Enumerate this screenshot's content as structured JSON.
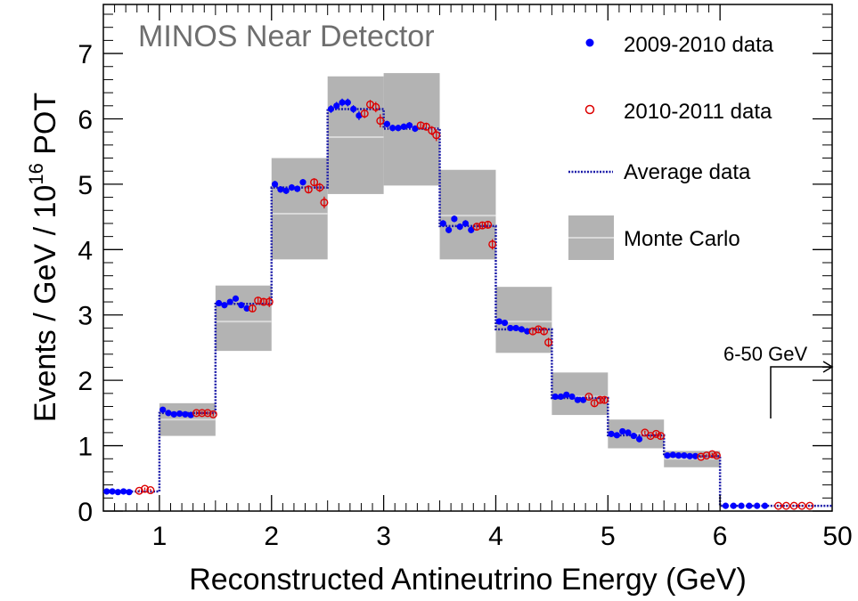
{
  "chart_data": {
    "type": "line",
    "title": "MINOS Near Detector",
    "xlabel": "Reconstructed Antineutrino Energy (GeV)",
    "ylabel_main": "Events / GeV / 10",
    "ylabel_exp": "16",
    "ylabel_tail": " POT",
    "xlim": [
      0.5,
      7.0
    ],
    "ylim": [
      0,
      7.75
    ],
    "x_ticks": [
      1,
      2,
      3,
      4,
      5,
      6
    ],
    "x_tick_labels": [
      "1",
      "2",
      "3",
      "4",
      "5",
      "6"
    ],
    "overflow_tick_label": "50",
    "y_ticks": [
      0,
      1,
      2,
      3,
      4,
      5,
      6,
      7
    ],
    "y_tick_labels": [
      "0",
      "1",
      "2",
      "3",
      "4",
      "5",
      "6",
      "7"
    ],
    "annotation": "6-50 GeV",
    "legend": [
      {
        "label": "2009-2010 data",
        "marker": "filled-circle",
        "color": "#0000ff"
      },
      {
        "label": "2010-2011 data",
        "marker": "open-circle",
        "color": "#dd0000"
      },
      {
        "label": "Average data",
        "marker": "dotted-line",
        "color": "#1a1aa8"
      },
      {
        "label": "Monte Carlo",
        "marker": "gray-box",
        "color": "#b3b3b3"
      }
    ],
    "monte_carlo": [
      {
        "x0": 1.0,
        "x1": 1.5,
        "center": 1.4,
        "low": 1.15,
        "high": 1.65
      },
      {
        "x0": 1.5,
        "x1": 2.0,
        "center": 2.9,
        "low": 2.45,
        "high": 3.45
      },
      {
        "x0": 2.0,
        "x1": 2.5,
        "center": 4.55,
        "low": 3.85,
        "high": 5.4
      },
      {
        "x0": 2.5,
        "x1": 3.0,
        "center": 5.72,
        "low": 4.85,
        "high": 6.65
      },
      {
        "x0": 3.0,
        "x1": 3.5,
        "center": 5.85,
        "low": 4.98,
        "high": 6.7
      },
      {
        "x0": 3.5,
        "x1": 4.0,
        "center": 4.52,
        "low": 3.85,
        "high": 5.22
      },
      {
        "x0": 4.0,
        "x1": 4.5,
        "center": 2.9,
        "low": 2.42,
        "high": 3.43
      },
      {
        "x0": 4.5,
        "x1": 5.0,
        "center": 1.75,
        "low": 1.47,
        "high": 2.12
      },
      {
        "x0": 5.0,
        "x1": 5.5,
        "center": 1.18,
        "low": 0.96,
        "high": 1.4
      },
      {
        "x0": 5.5,
        "x1": 6.0,
        "center": 0.8,
        "low": 0.67,
        "high": 0.92
      }
    ],
    "average_data": [
      {
        "x0": 0.5,
        "x1": 1.0,
        "y": 0.3
      },
      {
        "x0": 1.0,
        "x1": 1.5,
        "y": 1.5
      },
      {
        "x0": 1.5,
        "x1": 2.0,
        "y": 3.17
      },
      {
        "x0": 2.0,
        "x1": 2.5,
        "y": 4.95
      },
      {
        "x0": 2.5,
        "x1": 3.0,
        "y": 6.15
      },
      {
        "x0": 3.0,
        "x1": 3.5,
        "y": 5.85
      },
      {
        "x0": 3.5,
        "x1": 4.0,
        "y": 4.36
      },
      {
        "x0": 4.0,
        "x1": 4.5,
        "y": 2.78
      },
      {
        "x0": 4.5,
        "x1": 5.0,
        "y": 1.73
      },
      {
        "x0": 5.0,
        "x1": 5.5,
        "y": 1.16
      },
      {
        "x0": 5.5,
        "x1": 6.0,
        "y": 0.84
      },
      {
        "x0": 6.0,
        "x1": 7.0,
        "y": 0.08
      }
    ],
    "series": [
      {
        "name": "2009-2010 data",
        "x": [
          0.53,
          0.58,
          0.63,
          0.68,
          0.73,
          1.03,
          1.08,
          1.13,
          1.18,
          1.23,
          1.28,
          1.53,
          1.58,
          1.63,
          1.68,
          1.73,
          1.78,
          2.03,
          2.08,
          2.13,
          2.18,
          2.23,
          2.28,
          2.53,
          2.58,
          2.63,
          2.68,
          2.73,
          2.78,
          3.03,
          3.08,
          3.13,
          3.18,
          3.23,
          3.28,
          3.53,
          3.58,
          3.63,
          3.68,
          3.73,
          3.78,
          4.03,
          4.08,
          4.13,
          4.18,
          4.23,
          4.28,
          4.53,
          4.58,
          4.63,
          4.68,
          4.73,
          4.78,
          5.03,
          5.08,
          5.13,
          5.18,
          5.23,
          5.28,
          5.53,
          5.58,
          5.63,
          5.68,
          5.73,
          5.78,
          6.05,
          6.12,
          6.19,
          6.26,
          6.33,
          6.4
        ],
        "y": [
          0.3,
          0.3,
          0.29,
          0.3,
          0.29,
          1.55,
          1.5,
          1.48,
          1.49,
          1.48,
          1.47,
          3.18,
          3.15,
          3.2,
          3.25,
          3.15,
          3.1,
          5.0,
          4.92,
          4.9,
          4.95,
          4.93,
          5.03,
          6.15,
          6.2,
          6.25,
          6.25,
          6.15,
          6.05,
          5.92,
          5.86,
          5.86,
          5.88,
          5.9,
          5.85,
          4.4,
          4.3,
          4.47,
          4.35,
          4.4,
          4.3,
          2.9,
          2.88,
          2.8,
          2.8,
          2.78,
          2.75,
          1.75,
          1.75,
          1.78,
          1.75,
          1.7,
          1.7,
          1.18,
          1.16,
          1.22,
          1.2,
          1.15,
          1.1,
          0.85,
          0.86,
          0.85,
          0.85,
          0.84,
          0.84,
          0.08,
          0.08,
          0.08,
          0.08,
          0.08,
          0.08
        ],
        "err": [
          0.02,
          0.02,
          0.02,
          0.02,
          0.02,
          0.03,
          0.03,
          0.03,
          0.03,
          0.03,
          0.03,
          0.04,
          0.04,
          0.04,
          0.04,
          0.04,
          0.04,
          0.05,
          0.05,
          0.05,
          0.05,
          0.05,
          0.05,
          0.06,
          0.06,
          0.06,
          0.06,
          0.06,
          0.07,
          0.05,
          0.05,
          0.05,
          0.05,
          0.05,
          0.05,
          0.05,
          0.05,
          0.05,
          0.05,
          0.05,
          0.05,
          0.04,
          0.04,
          0.04,
          0.04,
          0.04,
          0.04,
          0.03,
          0.03,
          0.03,
          0.03,
          0.03,
          0.03,
          0.03,
          0.03,
          0.03,
          0.03,
          0.03,
          0.03,
          0.02,
          0.02,
          0.02,
          0.02,
          0.02,
          0.02,
          0.01,
          0.01,
          0.01,
          0.01,
          0.01,
          0.01
        ]
      },
      {
        "name": "2010-2011 data",
        "x": [
          0.82,
          0.87,
          0.92,
          1.33,
          1.38,
          1.43,
          1.48,
          1.83,
          1.88,
          1.93,
          1.98,
          2.33,
          2.38,
          2.43,
          2.47,
          2.83,
          2.88,
          2.93,
          2.97,
          3.33,
          3.38,
          3.43,
          3.47,
          3.83,
          3.88,
          3.93,
          3.97,
          4.33,
          4.38,
          4.43,
          4.47,
          4.83,
          4.88,
          4.93,
          4.97,
          5.33,
          5.38,
          5.43,
          5.47,
          5.83,
          5.88,
          5.93,
          5.97,
          6.52,
          6.59,
          6.66,
          6.73,
          6.8
        ],
        "y": [
          0.31,
          0.34,
          0.32,
          1.5,
          1.5,
          1.5,
          1.48,
          3.1,
          3.22,
          3.2,
          3.2,
          4.92,
          5.03,
          4.95,
          4.72,
          6.08,
          6.22,
          6.18,
          5.97,
          5.9,
          5.88,
          5.82,
          5.75,
          4.35,
          4.37,
          4.38,
          4.08,
          2.75,
          2.78,
          2.75,
          2.58,
          1.75,
          1.65,
          1.7,
          1.7,
          1.2,
          1.15,
          1.18,
          1.15,
          0.83,
          0.85,
          0.87,
          0.85,
          0.08,
          0.08,
          0.08,
          0.08,
          0.08
        ],
        "err": [
          0.02,
          0.02,
          0.02,
          0.03,
          0.03,
          0.03,
          0.03,
          0.05,
          0.05,
          0.05,
          0.08,
          0.06,
          0.06,
          0.07,
          0.09,
          0.07,
          0.07,
          0.08,
          0.1,
          0.06,
          0.06,
          0.07,
          0.09,
          0.05,
          0.05,
          0.06,
          0.08,
          0.04,
          0.04,
          0.05,
          0.07,
          0.03,
          0.04,
          0.04,
          0.05,
          0.03,
          0.03,
          0.03,
          0.04,
          0.02,
          0.02,
          0.02,
          0.03,
          0.01,
          0.01,
          0.01,
          0.01,
          0.01
        ]
      }
    ]
  }
}
